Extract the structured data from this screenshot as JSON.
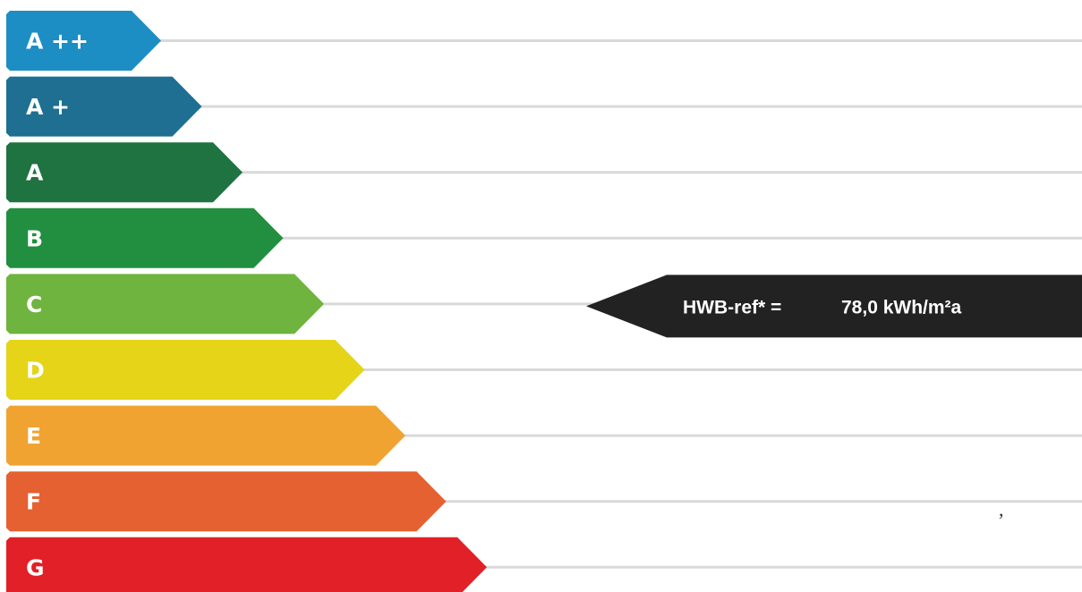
{
  "chart_data": {
    "type": "bar",
    "categories": [
      "A ++",
      "A +",
      "A",
      "B",
      "C",
      "D",
      "E",
      "F",
      "G"
    ],
    "colors": [
      "#1d8ec4",
      "#1e6f92",
      "#1f7340",
      "#218f3f",
      "#6fb43f",
      "#e5d418",
      "#f0a331",
      "#e56131",
      "#e22027"
    ],
    "selected_class": "C",
    "indicator": {
      "label": "HWB-ref* =",
      "value": "78,0 kWh/m²a",
      "color": "#222222"
    }
  },
  "stray_mark": ","
}
